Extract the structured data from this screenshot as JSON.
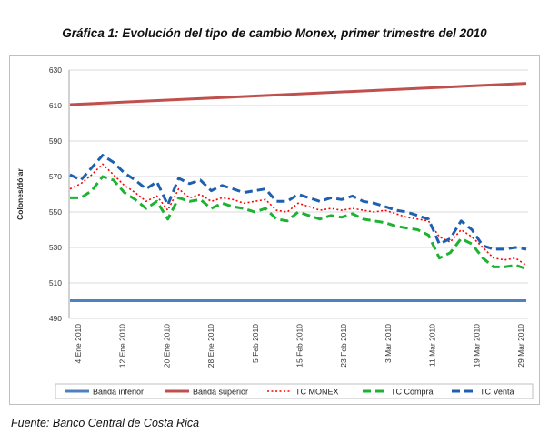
{
  "title": "Gráfica 1: Evolución del tipo de cambio Monex, primer trimestre del 2010",
  "source": "Fuente: Banco Central de Costa Rica",
  "colors": {
    "banda_inferior": "#4f81bd",
    "banda_superior": "#c0504d",
    "tc_monex": "#ff0000",
    "tc_compra": "#1eb232",
    "tc_venta": "#1f5fb0",
    "grid": "#d9d9d9",
    "frame": "#bfbfbf"
  },
  "chart_data": {
    "type": "line",
    "ylabel": "Colones/dólar",
    "xlabel": "",
    "ylim": [
      490,
      630
    ],
    "yticks": [
      490,
      510,
      530,
      550,
      570,
      590,
      610,
      630
    ],
    "grid": true,
    "legend_position": "bottom",
    "x_tick_labels": [
      "4 Ene 2010",
      "12 Ene 2010",
      "20 Ene 2010",
      "28 Ene 2010",
      "5 Feb 2010",
      "15 Feb 2010",
      "23 Feb 2010",
      "3 Mar 2010",
      "11 Mar 2010",
      "19 Mar 2010",
      "29 Mar 2010"
    ],
    "series": [
      {
        "name": "Banda inferior",
        "key": "banda_inferior",
        "style": "solid",
        "values": [
          500,
          500
        ]
      },
      {
        "name": "Banda superior",
        "key": "banda_superior",
        "style": "solid",
        "values": [
          610.5,
          622.5
        ]
      },
      {
        "name": "TC MONEX",
        "key": "tc_monex",
        "style": "dotted",
        "values": [
          563,
          566,
          571,
          577,
          571,
          565,
          561,
          556,
          559,
          551,
          563,
          558,
          560,
          556,
          558,
          557,
          555,
          556,
          557,
          551,
          550,
          555,
          553,
          551,
          552,
          551,
          552,
          551,
          550,
          551,
          549,
          547,
          546,
          545,
          536,
          533,
          540,
          536,
          530,
          524,
          523,
          524,
          520
        ]
      },
      {
        "name": "TC Compra",
        "key": "tc_compra",
        "style": "dashed",
        "values": [
          558,
          558,
          562,
          570,
          568,
          561,
          557,
          552,
          556,
          546,
          558,
          556,
          557,
          552,
          555,
          553,
          552,
          550,
          552,
          546,
          545,
          550,
          548,
          546,
          548,
          547,
          549,
          546,
          545,
          544,
          542,
          541,
          540,
          537,
          524,
          527,
          535,
          532,
          524,
          519,
          519,
          520,
          518
        ]
      },
      {
        "name": "TC Venta",
        "key": "tc_venta",
        "style": "dashed",
        "values": [
          571,
          568,
          575,
          582,
          578,
          572,
          568,
          563,
          567,
          554,
          569,
          566,
          568,
          562,
          565,
          563,
          561,
          562,
          563,
          556,
          556,
          560,
          558,
          556,
          558,
          557,
          559,
          556,
          555,
          553,
          551,
          550,
          548,
          546,
          532,
          535,
          545,
          540,
          531,
          529,
          529,
          530,
          529
        ]
      }
    ]
  }
}
